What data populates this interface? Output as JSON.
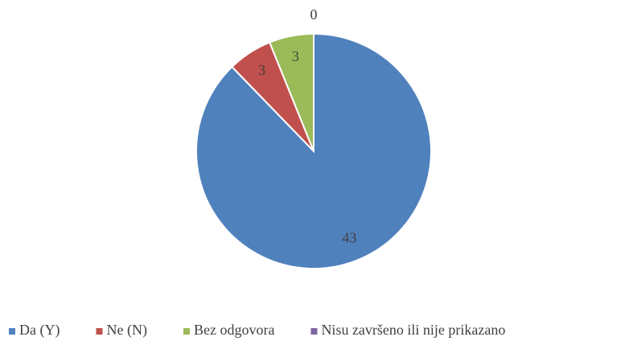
{
  "chart_data": {
    "type": "pie",
    "categories": [
      "Da (Y)",
      "Ne (N)",
      "Bez odgovora",
      "Nisu završeno ili nije prikazano"
    ],
    "values": [
      43,
      3,
      3,
      0
    ],
    "colors": [
      "#4f81bd",
      "#c0504d",
      "#9bbb59",
      "#8064a2"
    ],
    "legend": "bottom"
  }
}
